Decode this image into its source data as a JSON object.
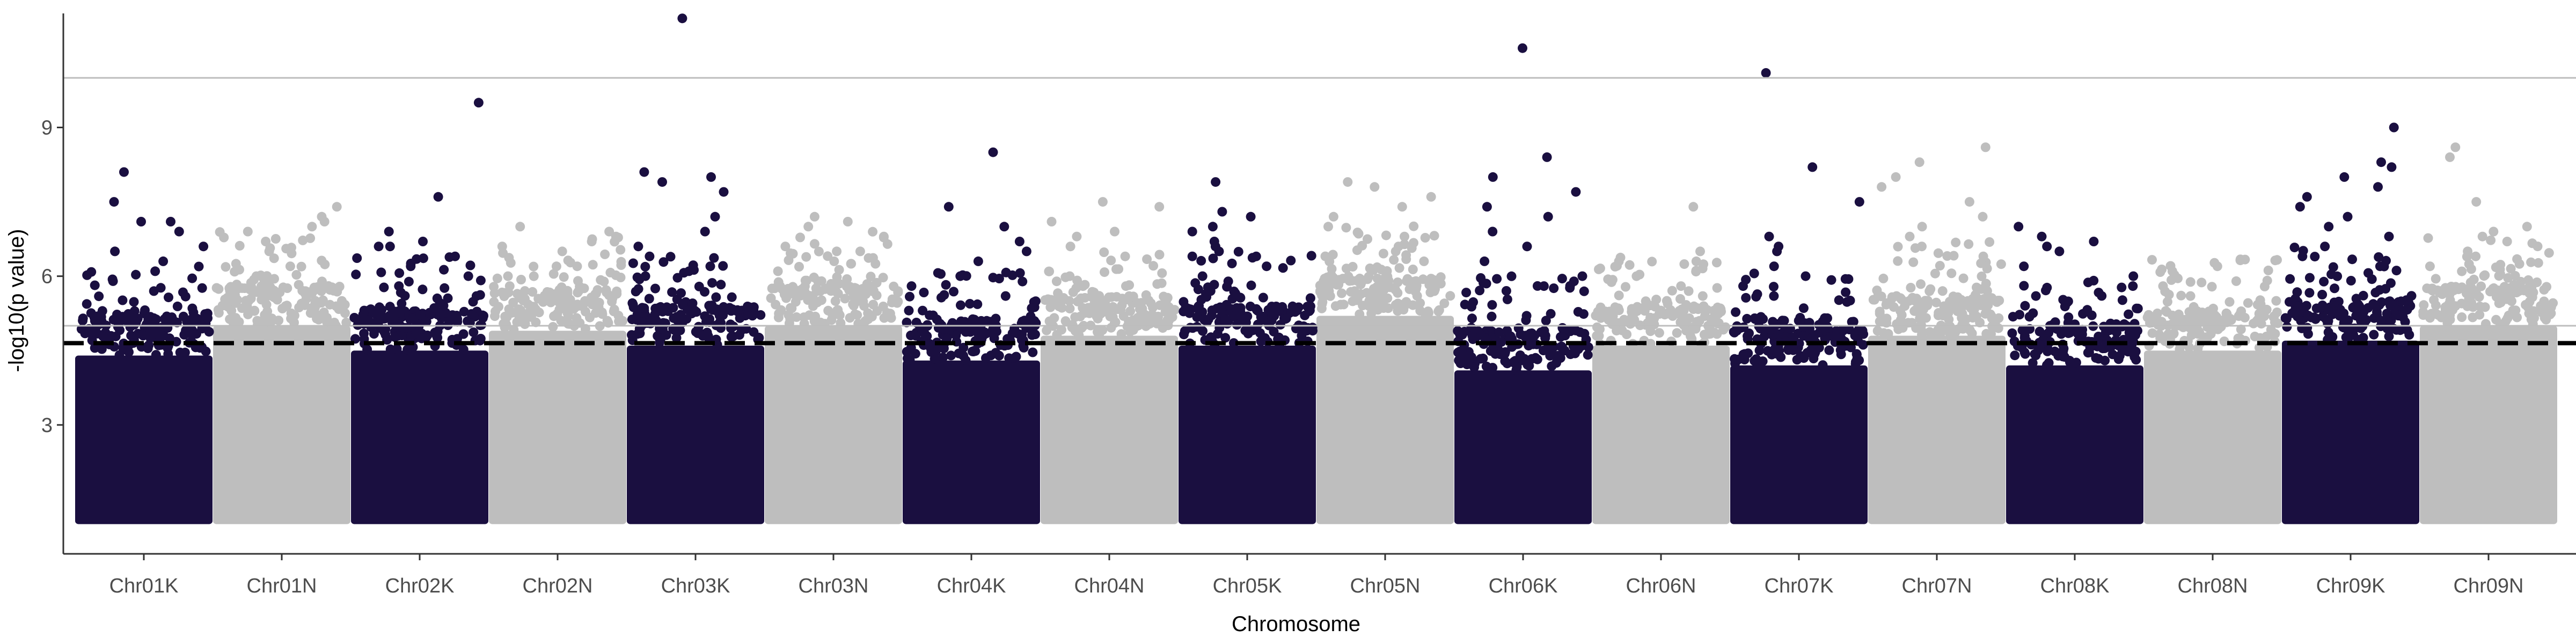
{
  "chart_data": {
    "type": "scatter",
    "title": "",
    "xlabel": "Chromosome",
    "ylabel": "-log10(p value)",
    "categories": [
      "Chr01K",
      "Chr01N",
      "Chr02K",
      "Chr02N",
      "Chr03K",
      "Chr03N",
      "Chr04K",
      "Chr04N",
      "Chr05K",
      "Chr05N",
      "Chr06K",
      "Chr06N",
      "Chr07K",
      "Chr07N",
      "Chr08K",
      "Chr08N",
      "Chr09K",
      "Chr09N"
    ],
    "yticks": [
      3,
      6,
      9
    ],
    "ylim": [
      0.4,
      11.3
    ],
    "grid": false,
    "point_value_range": [
      1.0,
      11.2
    ],
    "colors": {
      "K": "#1a0f40",
      "N": "#bebebe",
      "threshold": "#000000",
      "refline": "#bdbdbd",
      "axis": "#333333"
    },
    "reference_lines": [
      {
        "style": "solid-gray",
        "y": 10.0
      },
      {
        "style": "solid-gray",
        "y": 5.0
      },
      {
        "style": "dashed-black",
        "y": 4.65
      }
    ],
    "series": [
      {
        "chromosome": "Chr01K",
        "bulk_max": 5.0,
        "top": [
          7.1,
          7.1,
          8.1,
          7.5,
          6.9,
          6.6,
          6.5,
          6.3,
          6.1,
          5.9,
          5.7
        ]
      },
      {
        "chromosome": "Chr01N",
        "bulk_max": 5.6,
        "top": [
          7.4,
          7.2,
          7.1,
          7.0,
          6.9,
          6.7,
          6.5,
          6.2,
          6.0,
          5.9
        ]
      },
      {
        "chromosome": "Chr02K",
        "bulk_max": 5.1,
        "top": [
          9.5,
          7.6,
          6.9,
          6.7,
          6.6,
          6.6,
          6.4,
          6.2,
          6.0,
          5.8,
          5.6
        ]
      },
      {
        "chromosome": "Chr02N",
        "bulk_max": 5.5,
        "top": [
          7.0,
          6.9,
          6.8,
          6.7,
          6.6,
          6.5,
          6.2,
          6.0,
          5.8
        ]
      },
      {
        "chromosome": "Chr03K",
        "bulk_max": 5.2,
        "top": [
          11.2,
          8.1,
          8.0,
          7.9,
          7.7,
          7.2,
          6.9,
          6.6,
          6.4,
          6.2,
          6.1,
          6.0
        ]
      },
      {
        "chromosome": "Chr03N",
        "bulk_max": 5.6,
        "top": [
          7.2,
          7.1,
          7.0,
          6.8,
          6.6,
          6.5,
          6.3,
          6.1,
          5.9
        ]
      },
      {
        "chromosome": "Chr04K",
        "bulk_max": 4.9,
        "top": [
          8.5,
          7.4,
          7.0,
          6.7,
          6.5,
          6.3,
          6.0,
          5.8,
          5.6
        ]
      },
      {
        "chromosome": "Chr04N",
        "bulk_max": 5.4,
        "top": [
          7.5,
          7.4,
          7.1,
          6.9,
          6.8,
          6.6,
          6.4,
          6.0,
          5.8
        ]
      },
      {
        "chromosome": "Chr05K",
        "bulk_max": 5.2,
        "top": [
          7.9,
          7.3,
          7.2,
          7.0,
          6.9,
          6.7,
          6.6,
          6.5,
          6.4,
          6.2,
          6.0
        ]
      },
      {
        "chromosome": "Chr05N",
        "bulk_max": 5.8,
        "top": [
          7.9,
          7.8,
          7.6,
          7.4,
          7.2,
          7.0,
          6.8,
          6.6,
          6.5,
          6.3
        ]
      },
      {
        "chromosome": "Chr06K",
        "bulk_max": 4.7,
        "top": [
          10.6,
          8.4,
          8.0,
          7.7,
          7.4,
          7.2,
          6.9,
          6.6,
          6.3,
          6.0,
          5.8
        ]
      },
      {
        "chromosome": "Chr06N",
        "bulk_max": 5.2,
        "top": [
          7.4,
          6.5,
          6.3,
          6.0,
          5.8,
          5.7,
          5.6
        ]
      },
      {
        "chromosome": "Chr07K",
        "bulk_max": 4.8,
        "top": [
          10.1,
          8.2,
          7.5,
          6.8,
          6.6,
          6.5,
          6.2,
          6.0,
          5.8,
          5.6
        ]
      },
      {
        "chromosome": "Chr07N",
        "bulk_max": 5.4,
        "top": [
          8.6,
          8.3,
          8.0,
          7.8,
          7.5,
          7.2,
          7.0,
          6.8,
          6.6,
          6.4
        ]
      },
      {
        "chromosome": "Chr08K",
        "bulk_max": 4.8,
        "top": [
          7.0,
          6.8,
          6.7,
          6.6,
          6.5,
          6.2,
          6.0,
          5.8,
          5.6
        ]
      },
      {
        "chromosome": "Chr08N",
        "bulk_max": 5.1,
        "top": [
          6.2,
          6.1,
          5.9,
          5.8,
          5.6
        ]
      },
      {
        "chromosome": "Chr09K",
        "bulk_max": 5.3,
        "top": [
          9.0,
          8.3,
          8.2,
          8.0,
          7.8,
          7.6,
          7.4,
          7.2,
          7.0,
          6.8,
          6.6,
          6.4,
          6.2
        ]
      },
      {
        "chromosome": "Chr09N",
        "bulk_max": 5.6,
        "top": [
          8.6,
          8.4,
          7.5,
          7.0,
          6.9,
          6.8,
          6.7,
          6.5,
          6.4,
          6.2
        ]
      }
    ]
  }
}
